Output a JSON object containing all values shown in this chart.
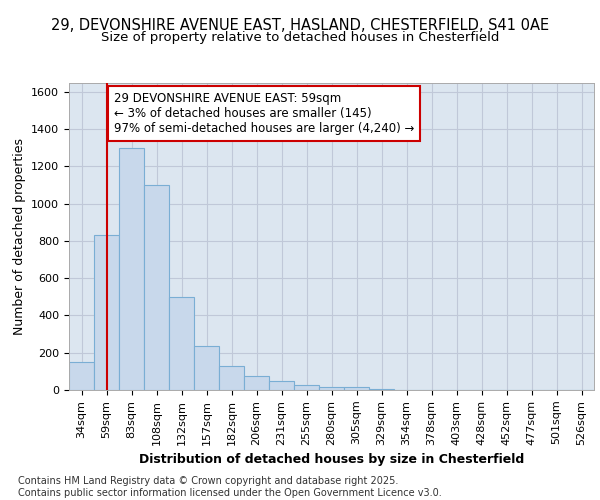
{
  "title1": "29, DEVONSHIRE AVENUE EAST, HASLAND, CHESTERFIELD, S41 0AE",
  "title2": "Size of property relative to detached houses in Chesterfield",
  "xlabel": "Distribution of detached houses by size in Chesterfield",
  "ylabel": "Number of detached properties",
  "categories": [
    "34sqm",
    "59sqm",
    "83sqm",
    "108sqm",
    "132sqm",
    "157sqm",
    "182sqm",
    "206sqm",
    "231sqm",
    "255sqm",
    "280sqm",
    "305sqm",
    "329sqm",
    "354sqm",
    "378sqm",
    "403sqm",
    "428sqm",
    "452sqm",
    "477sqm",
    "501sqm",
    "526sqm"
  ],
  "values": [
    150,
    830,
    1300,
    1100,
    500,
    235,
    130,
    75,
    50,
    25,
    15,
    15,
    5,
    0,
    0,
    0,
    0,
    0,
    0,
    0,
    0
  ],
  "bar_color": "#c8d8eb",
  "bar_edge_color": "#7aaed4",
  "annotation_box_text": "29 DEVONSHIRE AVENUE EAST: 59sqm\n← 3% of detached houses are smaller (145)\n97% of semi-detached houses are larger (4,240) →",
  "annotation_box_color": "#ffffff",
  "annotation_box_edge_color": "#cc0000",
  "vline_x_index": 1,
  "vline_color": "#cc0000",
  "ylim": [
    0,
    1650
  ],
  "yticks": [
    0,
    200,
    400,
    600,
    800,
    1000,
    1200,
    1400,
    1600
  ],
  "grid_color": "#c0c8d8",
  "plot_bg_color": "#dce6f0",
  "fig_bg_color": "#ffffff",
  "footer_text": "Contains HM Land Registry data © Crown copyright and database right 2025.\nContains public sector information licensed under the Open Government Licence v3.0.",
  "title_fontsize": 10.5,
  "subtitle_fontsize": 9.5,
  "axis_label_fontsize": 9,
  "tick_fontsize": 8,
  "footer_fontsize": 7,
  "annotation_fontsize": 8.5
}
